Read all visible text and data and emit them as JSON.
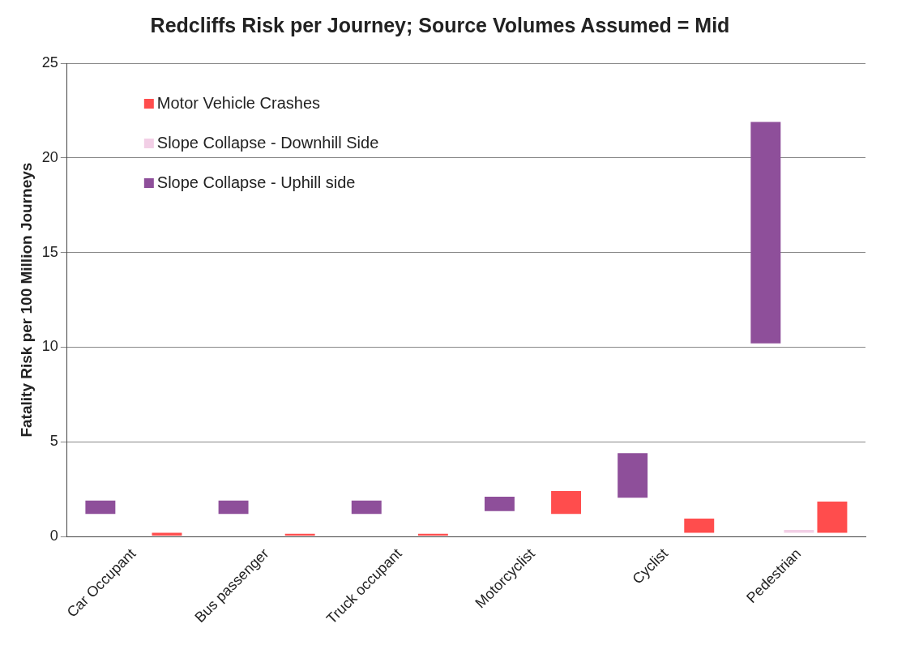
{
  "chart_data": {
    "type": "bar",
    "title": "Redcliffs Risk per Journey; Source Volumes Assumed = Mid",
    "ylabel": "Fatality Risk per 100 Million Journeys",
    "categories": [
      "Car Occupant",
      "Bus passenger",
      "Truck occupant",
      "Motorcyclist",
      "Cyclist",
      "Pedestrian"
    ],
    "series": [
      {
        "name": "Slope Collapse - Uphill side",
        "color": "#8e4f9a",
        "base": [
          1.2,
          1.2,
          1.2,
          1.35,
          2.05,
          10.2
        ],
        "values": [
          0.7,
          0.7,
          0.7,
          0.75,
          2.35,
          11.7
        ]
      },
      {
        "name": "Slope Collapse - Downhill Side",
        "color": "#f2cfe6",
        "base": [
          null,
          null,
          null,
          null,
          null,
          0.2
        ],
        "values": [
          null,
          null,
          null,
          null,
          null,
          0.15
        ]
      },
      {
        "name": "Motor Vehicle Crashes",
        "color": "#ff4d4d",
        "base": [
          0.05,
          0.05,
          0.05,
          1.2,
          0.2,
          0.2
        ],
        "values": [
          0.15,
          0.1,
          0.1,
          1.2,
          0.75,
          1.65
        ]
      }
    ],
    "ylim": [
      0,
      25
    ],
    "yticks": [
      0,
      5,
      10,
      15,
      20,
      25
    ],
    "grid": "y",
    "legend": "top left"
  }
}
